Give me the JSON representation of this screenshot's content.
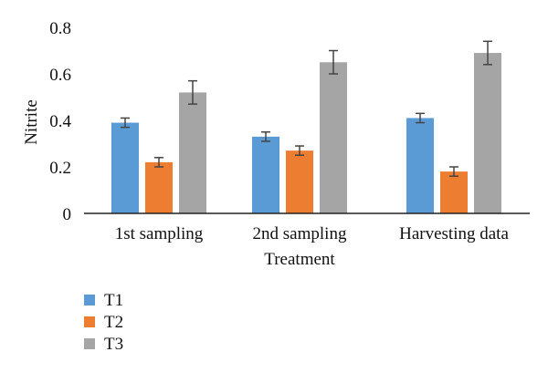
{
  "chart_data": {
    "type": "bar",
    "categories": [
      "1st sampling",
      "2nd sampling",
      "Harvesting data"
    ],
    "series": [
      {
        "name": "T1",
        "values": [
          0.39,
          0.33,
          0.41
        ],
        "errors": [
          0.02,
          0.02,
          0.02
        ],
        "color": "#5B9BD5"
      },
      {
        "name": "T2",
        "values": [
          0.22,
          0.27,
          0.18
        ],
        "errors": [
          0.02,
          0.02,
          0.02
        ],
        "color": "#ED7D31"
      },
      {
        "name": "T3",
        "values": [
          0.52,
          0.65,
          0.69
        ],
        "errors": [
          0.05,
          0.05,
          0.05
        ],
        "color": "#A5A5A5"
      }
    ],
    "xlabel": "Treatment",
    "ylabel": "Nitrite",
    "ylim": [
      0,
      0.8
    ],
    "yticks": [
      "0",
      "0.2",
      "0.4",
      "0.6",
      "0.8"
    ],
    "grid": false,
    "legend_position": "bottom-left",
    "axis_color": "#222222",
    "error_bar_color": "#444444"
  }
}
